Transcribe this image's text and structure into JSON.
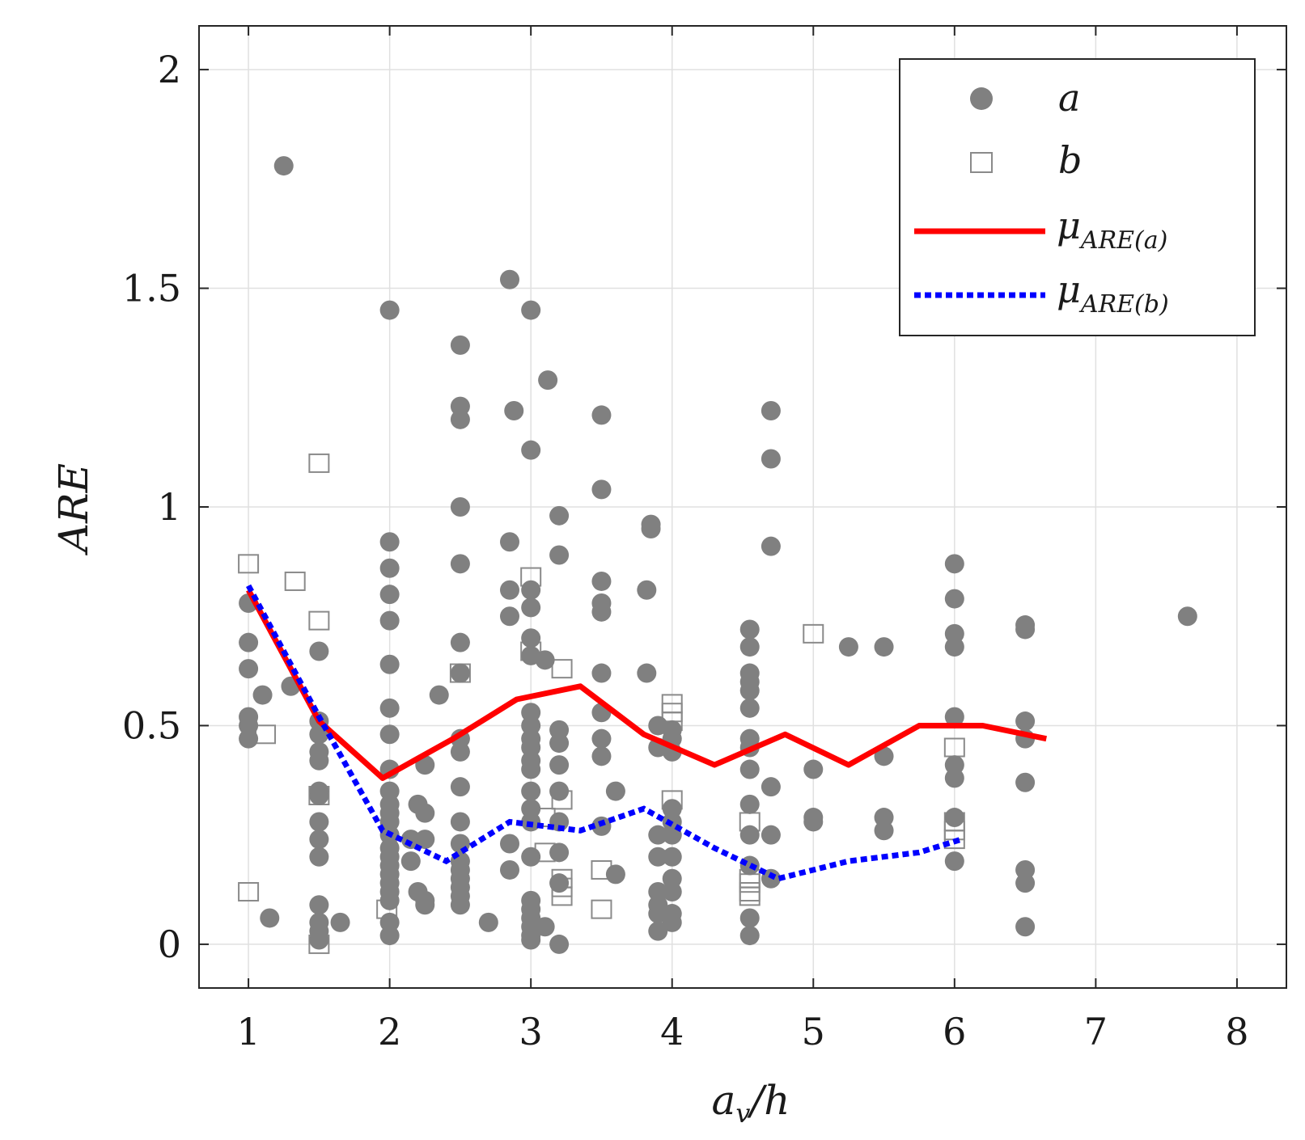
{
  "chart_data": {
    "type": "scatter",
    "xlabel": "a_v/h",
    "xlabel_parts": {
      "base": "a",
      "sub": "v",
      "rest": "/h"
    },
    "ylabel": "ARE",
    "xlim": [
      0.65,
      8.35
    ],
    "ylim": [
      -0.1,
      2.1
    ],
    "xticks": [
      "1",
      "2",
      "3",
      "4",
      "5",
      "6",
      "7",
      "8"
    ],
    "xtick_values": [
      1,
      2,
      3,
      4,
      5,
      6,
      7,
      8
    ],
    "yticks": [
      "0",
      "0.5",
      "1",
      "1.5",
      "2"
    ],
    "ytick_values": [
      0,
      0.5,
      1,
      1.5,
      2
    ],
    "grid": true,
    "legend_position": "top-right",
    "legend": [
      {
        "key": "a",
        "label": "a",
        "marker": "filled-circle"
      },
      {
        "key": "b",
        "label": "b",
        "marker": "open-square"
      },
      {
        "key": "mean_a",
        "label": "μ",
        "sub": "ARE(a)",
        "style": "solid"
      },
      {
        "key": "mean_b",
        "label": "μ",
        "sub": "ARE(b)",
        "style": "dotted"
      }
    ],
    "colors": {
      "a": "#808080",
      "b": "#8a8a8a",
      "mean_a": "#ff0000",
      "mean_b": "#0000ff"
    },
    "series": [
      {
        "name": "a",
        "points": [
          [
            1.0,
            0.78
          ],
          [
            1.0,
            0.69
          ],
          [
            1.0,
            0.63
          ],
          [
            1.0,
            0.52
          ],
          [
            1.0,
            0.5
          ],
          [
            1.0,
            0.47
          ],
          [
            1.1,
            0.57
          ],
          [
            1.15,
            0.06
          ],
          [
            1.25,
            1.78
          ],
          [
            1.3,
            0.59
          ],
          [
            1.5,
            0.67
          ],
          [
            1.5,
            0.51
          ],
          [
            1.5,
            0.48
          ],
          [
            1.5,
            0.44
          ],
          [
            1.5,
            0.42
          ],
          [
            1.5,
            0.35
          ],
          [
            1.5,
            0.34
          ],
          [
            1.5,
            0.28
          ],
          [
            1.5,
            0.24
          ],
          [
            1.5,
            0.2
          ],
          [
            1.5,
            0.09
          ],
          [
            1.5,
            0.05
          ],
          [
            1.5,
            0.03
          ],
          [
            1.5,
            0.01
          ],
          [
            1.65,
            0.05
          ],
          [
            2.0,
            1.45
          ],
          [
            2.0,
            0.92
          ],
          [
            2.0,
            0.86
          ],
          [
            2.0,
            0.8
          ],
          [
            2.0,
            0.74
          ],
          [
            2.0,
            0.64
          ],
          [
            2.0,
            0.54
          ],
          [
            2.0,
            0.48
          ],
          [
            2.0,
            0.4
          ],
          [
            2.0,
            0.35
          ],
          [
            2.0,
            0.32
          ],
          [
            2.0,
            0.3
          ],
          [
            2.0,
            0.28
          ],
          [
            2.0,
            0.25
          ],
          [
            2.0,
            0.22
          ],
          [
            2.0,
            0.2
          ],
          [
            2.0,
            0.18
          ],
          [
            2.0,
            0.16
          ],
          [
            2.0,
            0.14
          ],
          [
            2.0,
            0.12
          ],
          [
            2.0,
            0.1
          ],
          [
            2.0,
            0.05
          ],
          [
            2.0,
            0.02
          ],
          [
            2.15,
            0.19
          ],
          [
            2.15,
            0.24
          ],
          [
            2.2,
            0.32
          ],
          [
            2.2,
            0.12
          ],
          [
            2.25,
            0.41
          ],
          [
            2.25,
            0.3
          ],
          [
            2.25,
            0.24
          ],
          [
            2.25,
            0.1
          ],
          [
            2.25,
            0.09
          ],
          [
            2.35,
            0.57
          ],
          [
            2.5,
            1.37
          ],
          [
            2.5,
            1.23
          ],
          [
            2.5,
            1.2
          ],
          [
            2.5,
            1.0
          ],
          [
            2.5,
            0.87
          ],
          [
            2.5,
            0.69
          ],
          [
            2.5,
            0.62
          ],
          [
            2.5,
            0.47
          ],
          [
            2.5,
            0.44
          ],
          [
            2.5,
            0.36
          ],
          [
            2.5,
            0.28
          ],
          [
            2.5,
            0.23
          ],
          [
            2.5,
            0.19
          ],
          [
            2.5,
            0.17
          ],
          [
            2.5,
            0.15
          ],
          [
            2.5,
            0.13
          ],
          [
            2.5,
            0.11
          ],
          [
            2.5,
            0.09
          ],
          [
            2.7,
            0.05
          ],
          [
            2.85,
            1.52
          ],
          [
            2.85,
            0.92
          ],
          [
            2.85,
            0.81
          ],
          [
            2.85,
            0.75
          ],
          [
            2.85,
            0.23
          ],
          [
            2.85,
            0.17
          ],
          [
            2.88,
            1.22
          ],
          [
            3.0,
            1.45
          ],
          [
            3.0,
            1.13
          ],
          [
            3.0,
            0.81
          ],
          [
            3.0,
            0.77
          ],
          [
            3.0,
            0.7
          ],
          [
            3.0,
            0.66
          ],
          [
            3.0,
            0.53
          ],
          [
            3.0,
            0.5
          ],
          [
            3.0,
            0.47
          ],
          [
            3.0,
            0.45
          ],
          [
            3.0,
            0.42
          ],
          [
            3.0,
            0.4
          ],
          [
            3.0,
            0.35
          ],
          [
            3.0,
            0.31
          ],
          [
            3.0,
            0.28
          ],
          [
            3.0,
            0.2
          ],
          [
            3.0,
            0.1
          ],
          [
            3.0,
            0.08
          ],
          [
            3.0,
            0.06
          ],
          [
            3.0,
            0.04
          ],
          [
            3.0,
            0.02
          ],
          [
            3.0,
            0.01
          ],
          [
            3.1,
            0.65
          ],
          [
            3.1,
            0.04
          ],
          [
            3.12,
            1.29
          ],
          [
            3.2,
            0.98
          ],
          [
            3.2,
            0.89
          ],
          [
            3.2,
            0.49
          ],
          [
            3.2,
            0.46
          ],
          [
            3.2,
            0.41
          ],
          [
            3.2,
            0.35
          ],
          [
            3.2,
            0.28
          ],
          [
            3.2,
            0.21
          ],
          [
            3.2,
            0.14
          ],
          [
            3.2,
            0.0
          ],
          [
            3.5,
            1.21
          ],
          [
            3.5,
            1.04
          ],
          [
            3.5,
            0.83
          ],
          [
            3.5,
            0.78
          ],
          [
            3.5,
            0.76
          ],
          [
            3.5,
            0.62
          ],
          [
            3.5,
            0.53
          ],
          [
            3.5,
            0.47
          ],
          [
            3.5,
            0.43
          ],
          [
            3.5,
            0.27
          ],
          [
            3.6,
            0.35
          ],
          [
            3.6,
            0.16
          ],
          [
            3.82,
            0.81
          ],
          [
            3.82,
            0.62
          ],
          [
            3.85,
            0.96
          ],
          [
            3.85,
            0.95
          ],
          [
            3.9,
            0.5
          ],
          [
            3.9,
            0.45
          ],
          [
            3.9,
            0.25
          ],
          [
            3.9,
            0.2
          ],
          [
            3.9,
            0.12
          ],
          [
            3.9,
            0.09
          ],
          [
            3.9,
            0.07
          ],
          [
            3.9,
            0.03
          ],
          [
            4.0,
            0.49
          ],
          [
            4.0,
            0.47
          ],
          [
            4.0,
            0.44
          ],
          [
            4.0,
            0.31
          ],
          [
            4.0,
            0.28
          ],
          [
            4.0,
            0.25
          ],
          [
            4.0,
            0.2
          ],
          [
            4.0,
            0.15
          ],
          [
            4.0,
            0.12
          ],
          [
            4.0,
            0.07
          ],
          [
            4.0,
            0.05
          ],
          [
            4.55,
            0.72
          ],
          [
            4.55,
            0.68
          ],
          [
            4.55,
            0.62
          ],
          [
            4.55,
            0.6
          ],
          [
            4.55,
            0.58
          ],
          [
            4.55,
            0.54
          ],
          [
            4.55,
            0.47
          ],
          [
            4.55,
            0.45
          ],
          [
            4.55,
            0.4
          ],
          [
            4.55,
            0.32
          ],
          [
            4.55,
            0.25
          ],
          [
            4.55,
            0.18
          ],
          [
            4.55,
            0.06
          ],
          [
            4.55,
            0.02
          ],
          [
            4.7,
            1.22
          ],
          [
            4.7,
            1.11
          ],
          [
            4.7,
            0.91
          ],
          [
            4.7,
            0.36
          ],
          [
            4.7,
            0.25
          ],
          [
            4.7,
            0.15
          ],
          [
            5.0,
            0.4
          ],
          [
            5.0,
            0.29
          ],
          [
            5.0,
            0.28
          ],
          [
            5.25,
            0.68
          ],
          [
            5.5,
            0.68
          ],
          [
            5.5,
            0.43
          ],
          [
            5.5,
            0.29
          ],
          [
            5.5,
            0.26
          ],
          [
            6.0,
            0.87
          ],
          [
            6.0,
            0.79
          ],
          [
            6.0,
            0.71
          ],
          [
            6.0,
            0.68
          ],
          [
            6.0,
            0.52
          ],
          [
            6.0,
            0.41
          ],
          [
            6.0,
            0.38
          ],
          [
            6.0,
            0.29
          ],
          [
            6.0,
            0.19
          ],
          [
            6.5,
            0.73
          ],
          [
            6.5,
            0.72
          ],
          [
            6.5,
            0.51
          ],
          [
            6.5,
            0.47
          ],
          [
            6.5,
            0.37
          ],
          [
            6.5,
            0.17
          ],
          [
            6.5,
            0.14
          ],
          [
            6.5,
            0.04
          ],
          [
            7.65,
            0.75
          ]
        ]
      },
      {
        "name": "b",
        "points": [
          [
            1.0,
            0.87
          ],
          [
            1.0,
            0.12
          ],
          [
            1.12,
            0.48
          ],
          [
            1.33,
            0.83
          ],
          [
            1.5,
            1.1
          ],
          [
            1.5,
            0.74
          ],
          [
            1.5,
            0.34
          ],
          [
            1.5,
            0.0
          ],
          [
            1.98,
            0.08
          ],
          [
            2.5,
            0.62
          ],
          [
            3.0,
            0.84
          ],
          [
            3.0,
            0.67
          ],
          [
            3.1,
            0.29
          ],
          [
            3.1,
            0.21
          ],
          [
            3.22,
            0.63
          ],
          [
            3.22,
            0.33
          ],
          [
            3.22,
            0.15
          ],
          [
            3.22,
            0.13
          ],
          [
            3.22,
            0.11
          ],
          [
            3.5,
            0.17
          ],
          [
            3.5,
            0.08
          ],
          [
            4.0,
            0.55
          ],
          [
            4.0,
            0.53
          ],
          [
            4.0,
            0.51
          ],
          [
            4.0,
            0.33
          ],
          [
            4.55,
            0.28
          ],
          [
            4.55,
            0.15
          ],
          [
            4.55,
            0.14
          ],
          [
            4.55,
            0.12
          ],
          [
            4.55,
            0.11
          ],
          [
            5.0,
            0.71
          ],
          [
            6.0,
            0.45
          ],
          [
            6.0,
            0.28
          ],
          [
            6.0,
            0.26
          ],
          [
            6.0,
            0.24
          ]
        ]
      },
      {
        "name": "μ_ARE(a)",
        "points": [
          [
            1.0,
            0.81
          ],
          [
            1.5,
            0.51
          ],
          [
            1.95,
            0.38
          ],
          [
            2.45,
            0.47
          ],
          [
            2.9,
            0.56
          ],
          [
            3.35,
            0.59
          ],
          [
            3.8,
            0.48
          ],
          [
            4.3,
            0.41
          ],
          [
            4.8,
            0.48
          ],
          [
            5.25,
            0.41
          ],
          [
            5.75,
            0.5
          ],
          [
            6.2,
            0.5
          ],
          [
            6.65,
            0.47
          ]
        ]
      },
      {
        "name": "μ_ARE(b)",
        "points": [
          [
            1.0,
            0.82
          ],
          [
            1.5,
            0.52
          ],
          [
            1.95,
            0.26
          ],
          [
            2.4,
            0.19
          ],
          [
            2.85,
            0.28
          ],
          [
            3.35,
            0.26
          ],
          [
            3.8,
            0.31
          ],
          [
            4.3,
            0.22
          ],
          [
            4.75,
            0.15
          ],
          [
            5.25,
            0.19
          ],
          [
            5.75,
            0.21
          ],
          [
            6.05,
            0.24
          ]
        ]
      }
    ]
  }
}
